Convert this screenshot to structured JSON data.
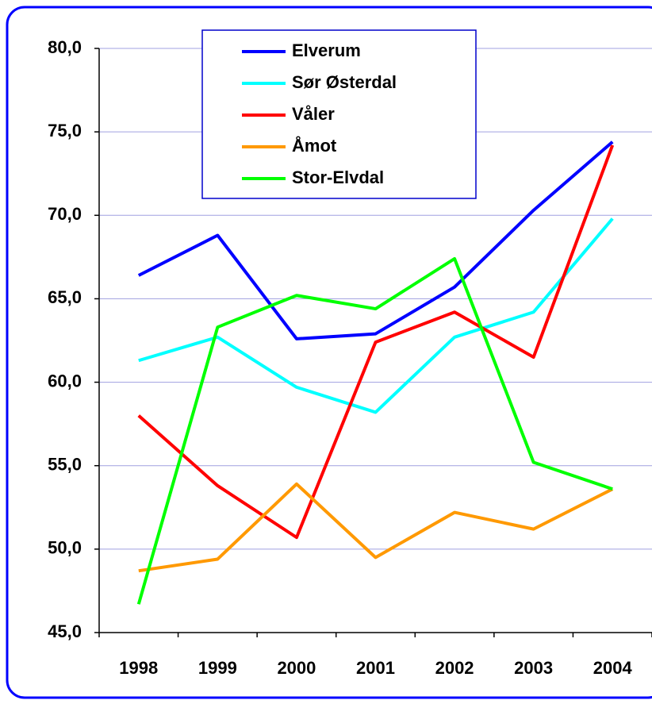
{
  "chart_data": {
    "type": "line",
    "categories": [
      "1998",
      "1999",
      "2000",
      "2001",
      "2002",
      "2003",
      "2004"
    ],
    "series": [
      {
        "name": "Elverum",
        "color": "#0000ff",
        "values": [
          66.4,
          68.8,
          62.6,
          62.9,
          65.7,
          70.3,
          74.4
        ]
      },
      {
        "name": "Sør Østerdal",
        "color": "#00ffff",
        "values": [
          61.3,
          62.7,
          59.7,
          58.2,
          62.7,
          64.2,
          69.8
        ]
      },
      {
        "name": "Våler",
        "color": "#ff0000",
        "values": [
          58.0,
          53.8,
          50.7,
          62.4,
          64.2,
          61.5,
          74.2
        ]
      },
      {
        "name": "Åmot",
        "color": "#ff9900",
        "values": [
          48.7,
          49.4,
          53.9,
          49.5,
          52.2,
          51.2,
          53.6
        ]
      },
      {
        "name": "Stor-Elvdal",
        "color": "#00ff00",
        "values": [
          46.7,
          63.3,
          65.2,
          64.4,
          67.4,
          55.2,
          53.6
        ]
      }
    ],
    "ylim": [
      45,
      80
    ],
    "yticks": [
      {
        "value": 45,
        "label": "45,0"
      },
      {
        "value": 50,
        "label": "50,0"
      },
      {
        "value": 55,
        "label": "55,0"
      },
      {
        "value": 60,
        "label": "60,0"
      },
      {
        "value": 65,
        "label": "65,0"
      },
      {
        "value": 70,
        "label": "70,0"
      },
      {
        "value": 75,
        "label": "75,0"
      },
      {
        "value": 80,
        "label": "80,0"
      }
    ],
    "grid": true,
    "legend": "top"
  }
}
